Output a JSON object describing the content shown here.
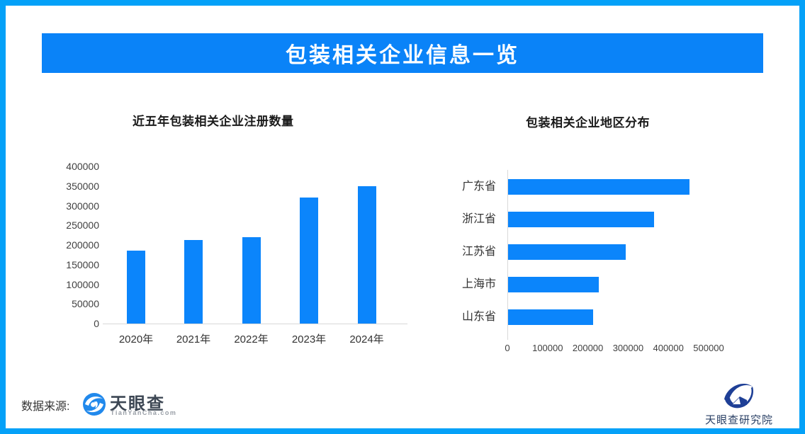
{
  "banner": {
    "title": "包装相关企业信息一览"
  },
  "chart_data": [
    {
      "type": "bar",
      "orientation": "vertical",
      "title": "近五年包装相关企业注册数量",
      "categories": [
        "2020年",
        "2021年",
        "2022年",
        "2023年",
        "2024年"
      ],
      "values": [
        185000,
        213000,
        220000,
        320000,
        350000
      ],
      "xlabel": "",
      "ylabel": "",
      "ylim": [
        0,
        400000
      ],
      "yticks": [
        0,
        50000,
        100000,
        150000,
        200000,
        250000,
        300000,
        350000,
        400000
      ],
      "grid": false,
      "legend": "none",
      "bar_color": "#0b85fb"
    },
    {
      "type": "bar",
      "orientation": "horizontal",
      "title": "包装相关企业地区分布",
      "categories": [
        "广东省",
        "浙江省",
        "江苏省",
        "上海市",
        "山东省"
      ],
      "values": [
        450000,
        362000,
        292000,
        225000,
        212000
      ],
      "xlabel": "",
      "ylabel": "",
      "xlim": [
        0,
        500000
      ],
      "xticks": [
        0,
        100000,
        200000,
        300000,
        400000,
        500000
      ],
      "grid": false,
      "legend": "none",
      "bar_color": "#0b85fb"
    }
  ],
  "footer": {
    "source_label": "数据来源:",
    "tianyancha_wordmark": "天眼查",
    "tianyancha_domain": "TianYanCha.com",
    "research_institute": "天眼查研究院"
  },
  "colors": {
    "frame_border": "#04a1f8",
    "banner_bg": "#0a83f8",
    "banner_text": "#ffffff",
    "bar": "#0b85fb",
    "axis_line": "#d9d9d9",
    "tick_text": "#404040",
    "title_text": "#1a1a1a",
    "tyc_logo_blue": "#2189ec",
    "research_logo_navy": "#1e3f96"
  }
}
